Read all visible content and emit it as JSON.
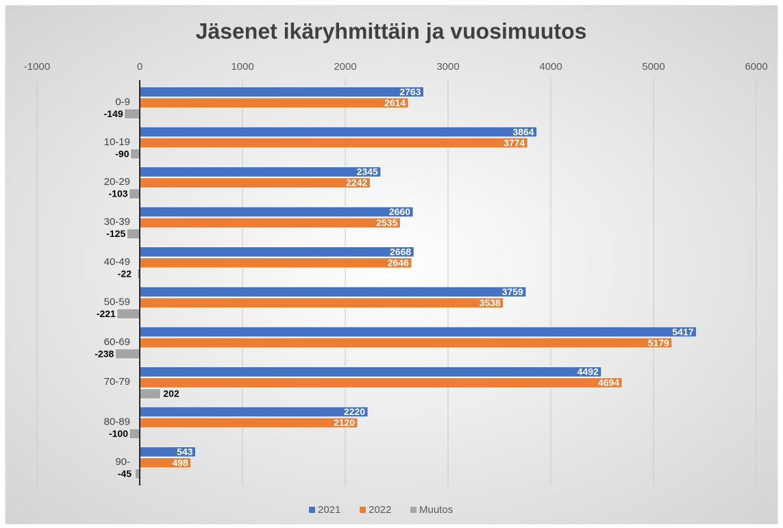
{
  "chart_data": {
    "type": "hbar",
    "title": "Jäsenet ikäryhmittäin ja vuosimuutos",
    "categories": [
      "0-9",
      "10-19",
      "20-29",
      "30-39",
      "40-49",
      "50-59",
      "60-69",
      "70-79",
      "80-89",
      "90-"
    ],
    "series": [
      {
        "name": "2021",
        "color": "#4472c4",
        "values": [
          2763,
          3864,
          2345,
          2660,
          2668,
          3759,
          5417,
          4492,
          2220,
          543
        ]
      },
      {
        "name": "2022",
        "color": "#ed7d31",
        "values": [
          2614,
          3774,
          2242,
          2535,
          2646,
          3538,
          5179,
          4694,
          2120,
          498
        ]
      },
      {
        "name": "Muutos",
        "color": "#a5a5a5",
        "values": [
          -149,
          -90,
          -103,
          -125,
          -22,
          -221,
          -238,
          202,
          -100,
          -45
        ]
      }
    ],
    "xlim": [
      -1000,
      6000
    ],
    "xticks": [
      -1000,
      0,
      1000,
      2000,
      3000,
      4000,
      5000,
      6000
    ],
    "grid": true,
    "legend": "bottom"
  }
}
